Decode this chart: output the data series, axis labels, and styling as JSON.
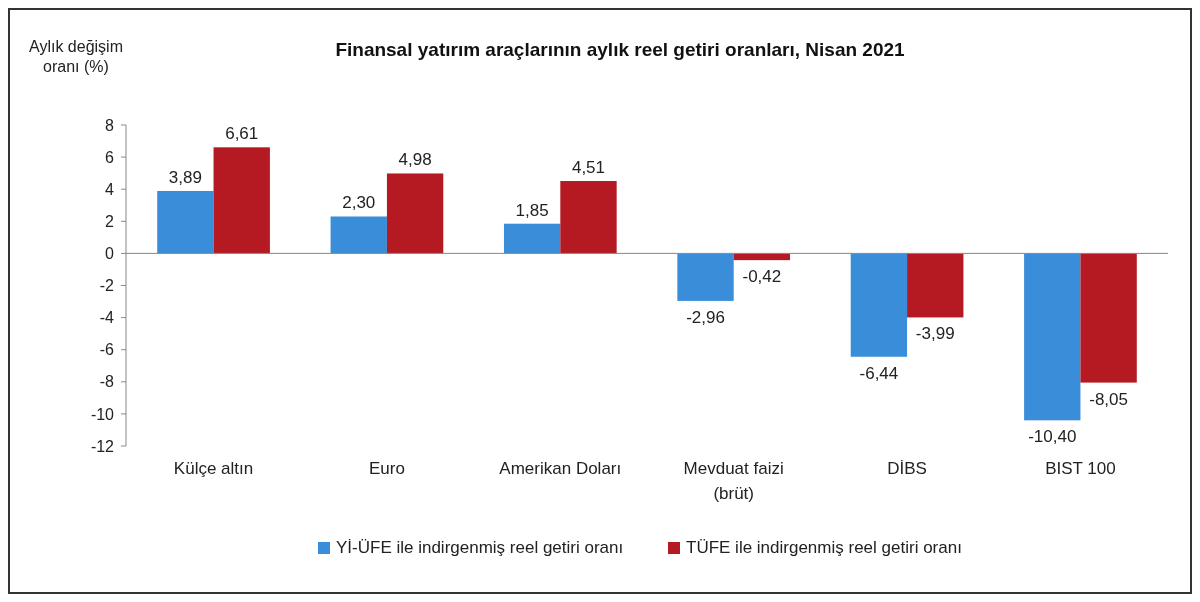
{
  "chart_data": {
    "type": "bar",
    "title": "Finansal yatırım araçlarının aylık reel getiri oranları, Nisan 2021",
    "ylabel": "Aylık değişim oranı (%)",
    "categories": [
      "Külçe altın",
      "Euro",
      "Amerikan Doları",
      "Mevduat faizi (brüt)",
      "DİBS",
      "BIST 100"
    ],
    "series": [
      {
        "name": "Yİ-ÜFE ile indirgenmiş reel getiri oranı",
        "color": "#3a8dd8",
        "values": [
          3.89,
          2.3,
          1.85,
          -2.96,
          -6.44,
          -10.4
        ],
        "value_labels": [
          "3,89",
          "2,30",
          "1,85",
          "-2,96",
          "-6,44",
          "-10,40"
        ]
      },
      {
        "name": "TÜFE ile indirgenmiş reel getiri oranı",
        "color": "#b51a22",
        "values": [
          6.61,
          4.98,
          4.51,
          -0.42,
          -3.99,
          -8.05
        ],
        "value_labels": [
          "6,61",
          "4,98",
          "4,51",
          "-0,42",
          "-3,99",
          "-8,05"
        ]
      }
    ],
    "ylim": [
      -12,
      8
    ],
    "yticks": [
      -12,
      -10,
      -8,
      -6,
      -4,
      -2,
      0,
      2,
      4,
      6,
      8
    ],
    "legend": "bottom"
  }
}
